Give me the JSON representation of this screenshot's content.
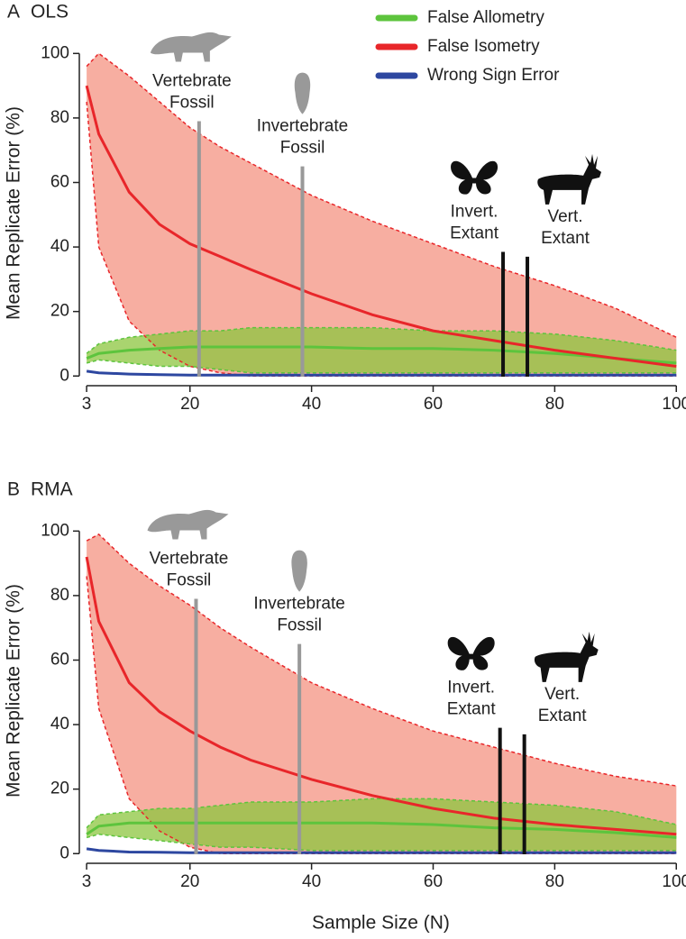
{
  "chart_data": [
    {
      "type": "line",
      "panel": "A",
      "title": "OLS",
      "ylabel": "Mean Replicate Error (%)",
      "x": [
        3,
        5,
        10,
        15,
        20,
        25,
        30,
        40,
        50,
        60,
        70,
        80,
        90,
        100
      ],
      "xlim": [
        1.8,
        101
      ],
      "xticks": [
        3,
        20,
        40,
        60,
        80,
        100
      ],
      "ylim": [
        -3,
        104
      ],
      "yticks": [
        0,
        20,
        40,
        60,
        80,
        100
      ],
      "legend": "top-right",
      "series": [
        {
          "name": "False Allometry",
          "color": "#5dc43d",
          "band_color": "#8cc63f",
          "values": [
            5.5,
            7,
            8,
            8.5,
            9,
            9,
            9,
            9,
            8.5,
            8.5,
            8,
            7,
            5.5,
            4
          ],
          "upper": [
            7,
            10,
            12,
            13,
            14,
            14,
            15,
            15,
            15,
            14,
            14,
            13,
            11,
            8
          ],
          "lower": [
            4,
            5,
            4,
            3,
            3,
            2,
            1,
            1,
            1,
            1,
            1,
            1,
            1,
            1
          ]
        },
        {
          "name": "False Isometry",
          "color": "#e8262a",
          "band_color": "#f59a8a",
          "values": [
            90,
            75,
            57,
            47,
            41,
            37,
            33,
            25.5,
            19,
            14,
            11,
            8,
            5.5,
            3
          ],
          "upper": [
            96,
            100,
            93,
            85,
            77,
            71,
            66,
            56,
            48,
            41,
            34,
            28,
            21,
            12
          ],
          "lower": [
            85,
            40,
            17,
            8,
            3,
            1,
            0,
            0,
            0,
            0,
            0,
            0,
            0,
            0
          ]
        },
        {
          "name": "Wrong Sign Error",
          "color": "#2d47a0",
          "values": [
            1.5,
            1,
            0.6,
            0.4,
            0.3,
            0.3,
            0.3,
            0.3,
            0.3,
            0.3,
            0.3,
            0.3,
            0.3,
            0.3
          ]
        }
      ],
      "annotations": [
        {
          "x": 21.5,
          "top": 79,
          "label": [
            "Vertebrate",
            "Fossil"
          ],
          "color": "#999999"
        },
        {
          "x": 38.5,
          "top": 65,
          "label": [
            "Invertebrate",
            "Fossil"
          ],
          "color": "#999999"
        },
        {
          "x": 71.5,
          "top": 38.5,
          "label": [
            "Invert.",
            "Extant"
          ],
          "color": "#111111"
        },
        {
          "x": 75.5,
          "top": 37,
          "label": [
            "Vert.",
            "Extant"
          ],
          "color": "#111111"
        }
      ]
    },
    {
      "type": "line",
      "panel": "B",
      "title": "RMA",
      "ylabel": "Mean Replicate Error (%)",
      "xlabel": "Sample Size (N)",
      "x": [
        3,
        5,
        10,
        15,
        20,
        25,
        30,
        40,
        50,
        60,
        70,
        80,
        90,
        100
      ],
      "xlim": [
        1.8,
        101
      ],
      "xticks": [
        3,
        20,
        40,
        60,
        80,
        100
      ],
      "ylim": [
        -3,
        104
      ],
      "yticks": [
        0,
        20,
        40,
        60,
        80,
        100
      ],
      "legend": false,
      "series": [
        {
          "name": "False Allometry",
          "color": "#5dc43d",
          "band_color": "#8cc63f",
          "values": [
            6,
            8.5,
            9.5,
            9.5,
            9.5,
            9.5,
            9.5,
            9.5,
            9.5,
            9,
            8,
            7.5,
            6.5,
            5
          ],
          "upper": [
            8,
            12,
            13,
            14,
            14,
            15,
            16,
            16,
            17,
            17,
            16,
            15,
            13,
            9
          ],
          "lower": [
            5,
            6,
            5,
            4,
            3,
            2,
            2,
            1,
            1,
            1,
            1,
            1,
            1,
            1
          ]
        },
        {
          "name": "False Isometry",
          "color": "#e8262a",
          "band_color": "#f59a8a",
          "values": [
            92,
            72,
            53,
            44,
            38,
            33,
            29,
            23,
            18,
            14,
            11,
            9,
            7.5,
            6
          ],
          "upper": [
            97,
            99,
            90,
            83,
            77,
            70,
            64,
            53,
            45,
            38,
            33,
            28,
            24,
            21
          ],
          "lower": [
            86,
            45,
            17,
            7,
            2,
            0,
            0,
            0,
            0,
            0,
            0,
            0,
            0,
            0
          ]
        },
        {
          "name": "Wrong Sign Error",
          "color": "#2d47a0",
          "values": [
            1.5,
            1,
            0.5,
            0.4,
            0.3,
            0.3,
            0.3,
            0.3,
            0.3,
            0.3,
            0.3,
            0.3,
            0.3,
            0.3
          ]
        }
      ],
      "annotations": [
        {
          "x": 21,
          "top": 79,
          "label": [
            "Vertebrate",
            "Fossil"
          ],
          "color": "#999999"
        },
        {
          "x": 38,
          "top": 65,
          "label": [
            "Invertebrate",
            "Fossil"
          ],
          "color": "#999999"
        },
        {
          "x": 71,
          "top": 39,
          "label": [
            "Invert.",
            "Extant"
          ],
          "color": "#111111"
        },
        {
          "x": 75,
          "top": 37,
          "label": [
            "Vert.",
            "Extant"
          ],
          "color": "#111111"
        }
      ]
    }
  ]
}
